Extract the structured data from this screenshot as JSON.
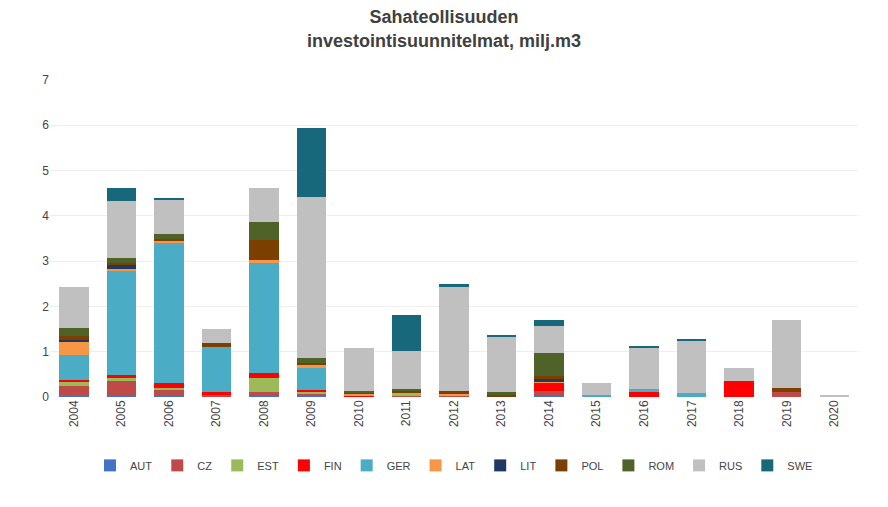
{
  "chart_data": {
    "type": "bar",
    "title": "Sahateollisuuden\ninvestointisuunnitelmat, milj.m3",
    "categories": [
      "2004",
      "2005",
      "2006",
      "2007",
      "2008",
      "2009",
      "2010",
      "2011",
      "2012",
      "2013",
      "2014",
      "2015",
      "2016",
      "2017",
      "2018",
      "2019",
      "2020"
    ],
    "series": [
      {
        "name": "AUT",
        "color": "#4472C4",
        "values": [
          0.05,
          0.05,
          0.05,
          0.0,
          0.02,
          0.02,
          0.0,
          0.0,
          0.0,
          0.0,
          0.05,
          0.0,
          0.0,
          0.0,
          0.0,
          0.0,
          0.0
        ]
      },
      {
        "name": "CZ",
        "color": "#BE4B48",
        "values": [
          0.2,
          0.3,
          0.1,
          0.05,
          0.1,
          0.05,
          0.0,
          0.03,
          0.03,
          0.0,
          0.08,
          0.0,
          0.0,
          0.0,
          0.0,
          0.12,
          0.0
        ]
      },
      {
        "name": "EST",
        "color": "#9BBB59",
        "values": [
          0.08,
          0.08,
          0.05,
          0.0,
          0.3,
          0.05,
          0.0,
          0.05,
          0.0,
          0.0,
          0.0,
          0.0,
          0.0,
          0.0,
          0.0,
          0.0,
          0.0
        ]
      },
      {
        "name": "FIN",
        "color": "#FF0000",
        "values": [
          0.05,
          0.05,
          0.1,
          0.05,
          0.1,
          0.03,
          0.02,
          0.0,
          0.0,
          0.0,
          0.18,
          0.0,
          0.1,
          0.0,
          0.35,
          0.0,
          0.0
        ]
      },
      {
        "name": "GER",
        "color": "#4BACC6",
        "values": [
          0.55,
          2.3,
          3.1,
          1.0,
          2.45,
          0.5,
          0.0,
          0.0,
          0.0,
          0.0,
          0.0,
          0.05,
          0.08,
          0.08,
          0.0,
          0.0,
          0.0
        ]
      },
      {
        "name": "LAT",
        "color": "#F79646",
        "values": [
          0.28,
          0.05,
          0.05,
          0.0,
          0.05,
          0.05,
          0.05,
          0.03,
          0.03,
          0.0,
          0.04,
          0.0,
          0.0,
          0.0,
          0.0,
          0.0,
          0.0
        ]
      },
      {
        "name": "LIT",
        "color": "#1F3864",
        "values": [
          0.05,
          0.08,
          0.0,
          0.0,
          0.0,
          0.0,
          0.0,
          0.0,
          0.0,
          0.0,
          0.04,
          0.0,
          0.0,
          0.0,
          0.0,
          0.0,
          0.0
        ]
      },
      {
        "name": "POL",
        "color": "#7B3F00",
        "values": [
          0.08,
          0.05,
          0.05,
          0.1,
          0.45,
          0.05,
          0.03,
          0.03,
          0.08,
          0.04,
          0.08,
          0.0,
          0.0,
          0.0,
          0.0,
          0.08,
          0.0
        ]
      },
      {
        "name": "ROM",
        "color": "#4F6228",
        "values": [
          0.18,
          0.12,
          0.1,
          0.0,
          0.4,
          0.12,
          0.04,
          0.03,
          0.0,
          0.08,
          0.5,
          0.0,
          0.0,
          0.0,
          0.0,
          0.0,
          0.0
        ]
      },
      {
        "name": "RUS",
        "color": "#C0C0C0",
        "values": [
          0.9,
          1.25,
          0.75,
          0.3,
          0.75,
          3.55,
          0.95,
          0.85,
          2.3,
          1.2,
          0.6,
          0.25,
          0.9,
          1.15,
          0.3,
          1.5,
          0.05
        ]
      },
      {
        "name": "SWE",
        "color": "#17687A",
        "values": [
          0.0,
          0.28,
          0.05,
          0.0,
          0.0,
          1.52,
          0.0,
          0.8,
          0.05,
          0.05,
          0.12,
          0.0,
          0.05,
          0.05,
          0.0,
          0.0,
          0.0
        ]
      }
    ],
    "ylim": [
      0,
      7
    ],
    "yticks": [
      0,
      1,
      2,
      3,
      4,
      5,
      6,
      7
    ],
    "stacked": true,
    "grid": true,
    "legend": "bottom"
  }
}
